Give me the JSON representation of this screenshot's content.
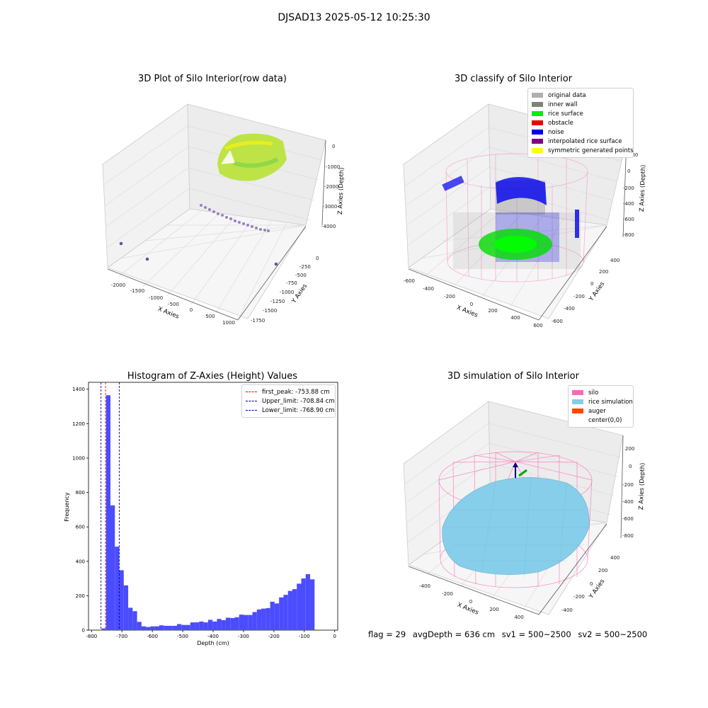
{
  "figure": {
    "suptitle": "DJSAD13 2025-05-12 10:25:30"
  },
  "panels": {
    "raw": {
      "title": "3D Plot of Silo Interior(row data)",
      "x_label": "X Axies",
      "y_label": "Y Axies",
      "z_label": "Z Axies (Depth)",
      "x_ticks": [
        "-2000",
        "-1500",
        "-1000",
        "-500",
        "0",
        "500",
        "1000"
      ],
      "y_ticks": [
        "0",
        "-250",
        "-500",
        "-750",
        "-1000",
        "-1250",
        "-1500",
        "-1750"
      ],
      "z_ticks": [
        "0",
        "-1000",
        "-2000",
        "-3000",
        "-4000"
      ]
    },
    "classify": {
      "title": "3D classify of Silo Interior",
      "x_label": "X Axies",
      "y_label": "Y Axies",
      "z_label": "Z Axies (Depth)",
      "x_ticks": [
        "-600",
        "-400",
        "-200",
        "0",
        "200",
        "400",
        "600"
      ],
      "y_ticks": [
        "400",
        "200",
        "0",
        "-200",
        "-400",
        "-600"
      ],
      "z_ticks": [
        "200",
        "0",
        "-200",
        "-400",
        "-600",
        "-800"
      ],
      "legend": [
        {
          "label": "original data",
          "color": "#b0b0b0"
        },
        {
          "label": "inner wall",
          "color": "#808080"
        },
        {
          "label": "rice surface",
          "color": "#00ee00"
        },
        {
          "label": "obstacle",
          "color": "#ee0000"
        },
        {
          "label": "noise",
          "color": "#0000ee"
        },
        {
          "label": "interpolated rice surface",
          "color": "#800080"
        },
        {
          "label": "symmetric generated points",
          "color": "#ffff00"
        }
      ]
    },
    "simulation": {
      "title": "3D simulation of Silo Interior",
      "x_label": "X Axies",
      "y_label": "Y Axies",
      "z_label": "Z Axies (Depth)",
      "x_ticks": [
        "-400",
        "-200",
        "0",
        "200",
        "400"
      ],
      "y_ticks": [
        "400",
        "200",
        "0",
        "-200",
        "-400"
      ],
      "z_ticks": [
        "200",
        "0",
        "-200",
        "-400",
        "-600",
        "-800"
      ],
      "legend": [
        {
          "label": "silo",
          "color": "#ff69b4"
        },
        {
          "label": "rice simulation",
          "color": "#87ceeb"
        },
        {
          "label": "auger",
          "color": "#ff4500"
        },
        {
          "label": "center(0,0)",
          "color": "#ffffff"
        }
      ]
    }
  },
  "chart_data": [
    {
      "type": "histogram",
      "title": "Histogram of Z-Axies (Height) Values",
      "xlabel": "Depth (cm)",
      "ylabel": "Frequency",
      "xlim": [
        -810,
        10
      ],
      "ylim": [
        0,
        1440
      ],
      "x_ticks": [
        -800,
        -700,
        -600,
        -500,
        -400,
        -300,
        -200,
        -100,
        0
      ],
      "y_ticks": [
        0,
        200,
        400,
        600,
        800,
        1000,
        1200,
        1400
      ],
      "bar_color": "#4c4cff",
      "bin_edges": [
        -767,
        -752.4,
        -737.8,
        -723.2,
        -708.6,
        -694,
        -679.4,
        -664.8,
        -650.2,
        -635.6,
        -621,
        -606.4,
        -591.8,
        -577.2,
        -562.6,
        -548,
        -533.4,
        -518.8,
        -504.2,
        -489.6,
        -475,
        -460.4,
        -445.8,
        -431.2,
        -416.6,
        -402,
        -387.4,
        -372.8,
        -358.2,
        -343.6,
        -329,
        -314.4,
        -299.8,
        -285.2,
        -270.6,
        -256,
        -241.4,
        -226.8,
        -212.2,
        -197.6,
        -183,
        -168.4,
        -153.8,
        -139.2,
        -124.6,
        -110,
        -95.4,
        -80.8,
        -66.2,
        -51.6,
        -37,
        -22.4
      ],
      "counts": [
        10,
        1365,
        725,
        485,
        348,
        260,
        130,
        110,
        48,
        22,
        18,
        22,
        22,
        28,
        25,
        25,
        25,
        35,
        30,
        30,
        45,
        45,
        50,
        45,
        60,
        50,
        65,
        58,
        72,
        70,
        75,
        90,
        88,
        88,
        105,
        120,
        125,
        128,
        165,
        155,
        190,
        205,
        228,
        238,
        270,
        300,
        325,
        295,
        0,
        0,
        0
      ],
      "vlines": [
        {
          "label": "first_peak: -753.88 cm",
          "x": -753.88,
          "color": "#ff0000"
        },
        {
          "label": "Upper_limit: -708.84 cm",
          "x": -708.84,
          "color": "#0000aa"
        },
        {
          "label": "Lower_limit: -768.90 cm",
          "x": -768.9,
          "color": "#0000aa"
        }
      ]
    }
  ],
  "footer": {
    "flag": "flag = 29",
    "avg_depth": "avgDepth = 636 cm",
    "sv1": "sv1 = 500~2500",
    "sv2": "sv2 = 500~2500"
  }
}
